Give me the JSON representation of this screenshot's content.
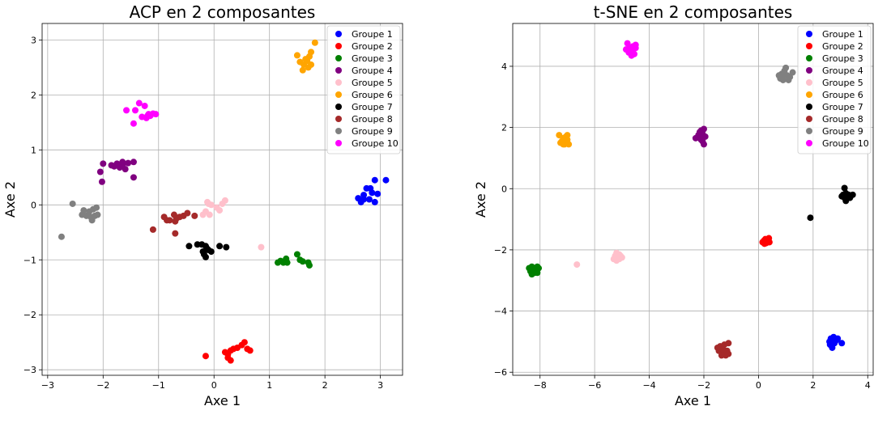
{
  "chart_data": [
    {
      "type": "scatter",
      "title": "ACP en 2 composantes",
      "xlabel": "Axe 1",
      "ylabel": "Axe 2",
      "xlim": [
        -3.1,
        3.4
      ],
      "ylim": [
        -3.1,
        3.3
      ],
      "xticks": [
        -3,
        -2,
        -1,
        0,
        1,
        2,
        3
      ],
      "yticks": [
        -3,
        -2,
        -1,
        0,
        1,
        2,
        3
      ],
      "grid": true,
      "legend_position": "top-right",
      "series": [
        {
          "name": "Groupe 1",
          "color": "#0000ff",
          "points": [
            [
              2.65,
              0.05
            ],
            [
              2.6,
              0.12
            ],
            [
              2.7,
              0.18
            ],
            [
              2.75,
              0.3
            ],
            [
              2.8,
              0.1
            ],
            [
              2.85,
              0.22
            ],
            [
              2.9,
              0.05
            ],
            [
              2.95,
              0.2
            ],
            [
              2.9,
              0.45
            ],
            [
              3.1,
              0.45
            ],
            [
              2.82,
              0.3
            ],
            [
              2.7,
              0.1
            ]
          ]
        },
        {
          "name": "Groupe 2",
          "color": "#ff0000",
          "points": [
            [
              0.2,
              -2.68
            ],
            [
              0.25,
              -2.72
            ],
            [
              0.3,
              -2.65
            ],
            [
              0.35,
              -2.62
            ],
            [
              0.42,
              -2.6
            ],
            [
              0.5,
              -2.55
            ],
            [
              0.55,
              -2.5
            ],
            [
              0.6,
              -2.62
            ],
            [
              0.65,
              -2.65
            ],
            [
              0.3,
              -2.83
            ],
            [
              0.25,
              -2.78
            ],
            [
              -0.15,
              -2.75
            ]
          ]
        },
        {
          "name": "Groupe 3",
          "color": "#008000",
          "points": [
            [
              1.15,
              -1.05
            ],
            [
              1.2,
              -1.02
            ],
            [
              1.25,
              -1.05
            ],
            [
              1.3,
              -0.98
            ],
            [
              1.32,
              -1.05
            ],
            [
              1.5,
              -0.9
            ],
            [
              1.55,
              -1.0
            ],
            [
              1.6,
              -1.03
            ],
            [
              1.7,
              -1.05
            ],
            [
              1.72,
              -1.1
            ],
            [
              1.28,
              -1.02
            ]
          ]
        },
        {
          "name": "Groupe 4",
          "color": "#800080",
          "points": [
            [
              -2.05,
              0.6
            ],
            [
              -2.0,
              0.75
            ],
            [
              -2.02,
              0.42
            ],
            [
              -1.85,
              0.72
            ],
            [
              -1.8,
              0.7
            ],
            [
              -1.75,
              0.75
            ],
            [
              -1.7,
              0.68
            ],
            [
              -1.65,
              0.72
            ],
            [
              -1.6,
              0.65
            ],
            [
              -1.55,
              0.76
            ],
            [
              -1.45,
              0.78
            ],
            [
              -1.45,
              0.5
            ],
            [
              -1.65,
              0.78
            ]
          ]
        },
        {
          "name": "Groupe 5",
          "color": "#ffc0cb",
          "points": [
            [
              -0.2,
              -0.18
            ],
            [
              -0.15,
              -0.12
            ],
            [
              -0.1,
              0.02
            ],
            [
              -0.05,
              0.0
            ],
            [
              -0.08,
              -0.18
            ],
            [
              0.05,
              -0.05
            ],
            [
              0.1,
              -0.1
            ],
            [
              0.15,
              0.02
            ],
            [
              0.2,
              0.08
            ],
            [
              -0.12,
              0.05
            ],
            [
              0.85,
              -0.77
            ]
          ]
        },
        {
          "name": "Groupe 6",
          "color": "#ffa500",
          "points": [
            [
              1.5,
              2.72
            ],
            [
              1.55,
              2.6
            ],
            [
              1.6,
              2.45
            ],
            [
              1.62,
              2.55
            ],
            [
              1.65,
              2.65
            ],
            [
              1.7,
              2.5
            ],
            [
              1.72,
              2.7
            ],
            [
              1.75,
              2.55
            ],
            [
              1.75,
              2.78
            ],
            [
              1.68,
              2.62
            ],
            [
              1.82,
              2.95
            ]
          ]
        },
        {
          "name": "Groupe 7",
          "color": "#000000",
          "points": [
            [
              -0.45,
              -0.75
            ],
            [
              -0.3,
              -0.72
            ],
            [
              -0.22,
              -0.72
            ],
            [
              -0.2,
              -0.85
            ],
            [
              -0.18,
              -0.9
            ],
            [
              -0.15,
              -0.75
            ],
            [
              -0.12,
              -0.8
            ],
            [
              -0.1,
              -0.82
            ],
            [
              -0.05,
              -0.85
            ],
            [
              -0.15,
              -0.95
            ],
            [
              0.1,
              -0.75
            ],
            [
              0.22,
              -0.77
            ]
          ]
        },
        {
          "name": "Groupe 8",
          "color": "#a52a2a",
          "points": [
            [
              -1.1,
              -0.45
            ],
            [
              -0.9,
              -0.22
            ],
            [
              -0.85,
              -0.28
            ],
            [
              -0.8,
              -0.28
            ],
            [
              -0.72,
              -0.18
            ],
            [
              -0.68,
              -0.25
            ],
            [
              -0.7,
              -0.3
            ],
            [
              -0.62,
              -0.22
            ],
            [
              -0.55,
              -0.2
            ],
            [
              -0.48,
              -0.15
            ],
            [
              -0.35,
              -0.2
            ],
            [
              -0.7,
              -0.52
            ]
          ]
        },
        {
          "name": "Groupe 9",
          "color": "#808080",
          "points": [
            [
              -2.75,
              -0.58
            ],
            [
              -2.55,
              0.02
            ],
            [
              -2.35,
              -0.1
            ],
            [
              -2.38,
              -0.18
            ],
            [
              -2.3,
              -0.2
            ],
            [
              -2.25,
              -0.12
            ],
            [
              -2.22,
              -0.22
            ],
            [
              -2.2,
              -0.28
            ],
            [
              -2.18,
              -0.08
            ],
            [
              -2.15,
              -0.2
            ],
            [
              -2.12,
              -0.05
            ],
            [
              -2.1,
              -0.18
            ]
          ]
        },
        {
          "name": "Groupe 10",
          "color": "#ff00ff",
          "points": [
            [
              -1.58,
              1.72
            ],
            [
              -1.45,
              1.48
            ],
            [
              -1.42,
              1.72
            ],
            [
              -1.35,
              1.85
            ],
            [
              -1.3,
              1.6
            ],
            [
              -1.25,
              1.8
            ],
            [
              -1.22,
              1.58
            ],
            [
              -1.18,
              1.65
            ],
            [
              -1.15,
              1.62
            ],
            [
              -1.1,
              1.66
            ],
            [
              -1.05,
              1.65
            ],
            [
              -1.2,
              1.62
            ]
          ]
        }
      ]
    },
    {
      "type": "scatter",
      "title": "t-SNE en 2 composantes",
      "xlabel": "Axe 1",
      "ylabel": "Axe 2",
      "xlim": [
        -9.0,
        4.2
      ],
      "ylim": [
        -6.1,
        5.4
      ],
      "xticks": [
        -8,
        -6,
        -4,
        -2,
        0,
        2,
        4
      ],
      "yticks": [
        -6,
        -4,
        -2,
        0,
        2,
        4
      ],
      "grid": true,
      "legend_position": "top-right",
      "series": [
        {
          "name": "Groupe 1",
          "color": "#0000ff",
          "points": [
            [
              2.6,
              -5.0
            ],
            [
              2.65,
              -4.9
            ],
            [
              2.7,
              -5.1
            ],
            [
              2.75,
              -4.85
            ],
            [
              2.8,
              -5.0
            ],
            [
              2.85,
              -4.95
            ],
            [
              2.7,
              -5.2
            ],
            [
              2.9,
              -4.9
            ],
            [
              2.62,
              -5.1
            ],
            [
              3.05,
              -5.05
            ],
            [
              2.78,
              -5.05
            ]
          ]
        },
        {
          "name": "Groupe 2",
          "color": "#ff0000",
          "points": [
            [
              0.15,
              -1.75
            ],
            [
              0.2,
              -1.7
            ],
            [
              0.25,
              -1.65
            ],
            [
              0.3,
              -1.72
            ],
            [
              0.35,
              -1.68
            ],
            [
              0.4,
              -1.75
            ],
            [
              0.22,
              -1.8
            ],
            [
              0.38,
              -1.62
            ],
            [
              0.28,
              -1.78
            ],
            [
              0.33,
              -1.7
            ]
          ]
        },
        {
          "name": "Groupe 3",
          "color": "#008000",
          "points": [
            [
              -8.4,
              -2.6
            ],
            [
              -8.35,
              -2.7
            ],
            [
              -8.3,
              -2.55
            ],
            [
              -8.25,
              -2.65
            ],
            [
              -8.2,
              -2.75
            ],
            [
              -8.15,
              -2.6
            ],
            [
              -8.1,
              -2.55
            ],
            [
              -8.3,
              -2.8
            ],
            [
              -8.05,
              -2.6
            ],
            [
              -8.1,
              -2.75
            ],
            [
              -8.25,
              -2.6
            ]
          ]
        },
        {
          "name": "Groupe 4",
          "color": "#800080",
          "points": [
            [
              -2.3,
              1.65
            ],
            [
              -2.2,
              1.75
            ],
            [
              -2.15,
              1.85
            ],
            [
              -2.1,
              1.6
            ],
            [
              -2.05,
              1.8
            ],
            [
              -2.0,
              1.95
            ],
            [
              -1.95,
              1.7
            ],
            [
              -2.0,
              1.45
            ],
            [
              -2.1,
              1.9
            ],
            [
              -2.05,
              1.55
            ],
            [
              -2.15,
              1.65
            ]
          ]
        },
        {
          "name": "Groupe 5",
          "color": "#ffc0cb",
          "points": [
            [
              -5.3,
              -2.3
            ],
            [
              -5.25,
              -2.2
            ],
            [
              -5.2,
              -2.1
            ],
            [
              -5.15,
              -2.25
            ],
            [
              -5.1,
              -2.3
            ],
            [
              -5.05,
              -2.2
            ],
            [
              -5.0,
              -2.25
            ],
            [
              -5.2,
              -2.35
            ],
            [
              -5.1,
              -2.15
            ],
            [
              -6.65,
              -2.48
            ]
          ]
        },
        {
          "name": "Groupe 6",
          "color": "#ffa500",
          "points": [
            [
              -7.3,
              1.75
            ],
            [
              -7.25,
              1.5
            ],
            [
              -7.2,
              1.55
            ],
            [
              -7.15,
              1.65
            ],
            [
              -7.1,
              1.45
            ],
            [
              -7.05,
              1.7
            ],
            [
              -7.0,
              1.6
            ],
            [
              -6.95,
              1.45
            ],
            [
              -7.05,
              1.5
            ],
            [
              -7.15,
              1.45
            ],
            [
              -7.0,
              1.75
            ]
          ]
        },
        {
          "name": "Groupe 7",
          "color": "#000000",
          "points": [
            [
              3.1,
              -0.2
            ],
            [
              3.15,
              -0.3
            ],
            [
              3.2,
              -0.15
            ],
            [
              3.25,
              -0.25
            ],
            [
              3.3,
              -0.2
            ],
            [
              3.35,
              -0.3
            ],
            [
              3.45,
              -0.2
            ],
            [
              3.15,
              0.02
            ],
            [
              3.2,
              -0.4
            ],
            [
              3.05,
              -0.25
            ],
            [
              1.9,
              -0.95
            ]
          ]
        },
        {
          "name": "Groupe 8",
          "color": "#a52a2a",
          "points": [
            [
              -1.5,
              -5.2
            ],
            [
              -1.45,
              -5.3
            ],
            [
              -1.4,
              -5.15
            ],
            [
              -1.35,
              -5.35
            ],
            [
              -1.3,
              -5.25
            ],
            [
              -1.25,
              -5.1
            ],
            [
              -1.2,
              -5.45
            ],
            [
              -1.15,
              -5.3
            ],
            [
              -1.1,
              -5.05
            ],
            [
              -1.1,
              -5.4
            ],
            [
              -1.35,
              -5.45
            ]
          ]
        },
        {
          "name": "Groupe 9",
          "color": "#808080",
          "points": [
            [
              0.75,
              3.7
            ],
            [
              0.8,
              3.6
            ],
            [
              0.85,
              3.75
            ],
            [
              0.9,
              3.55
            ],
            [
              0.95,
              3.85
            ],
            [
              1.0,
              3.95
            ],
            [
              1.05,
              3.7
            ],
            [
              1.1,
              3.55
            ],
            [
              1.15,
              3.65
            ],
            [
              1.25,
              3.8
            ],
            [
              0.9,
              3.7
            ]
          ]
        },
        {
          "name": "Groupe 10",
          "color": "#ff00ff",
          "points": [
            [
              -4.85,
              4.55
            ],
            [
              -4.8,
              4.75
            ],
            [
              -4.75,
              4.45
            ],
            [
              -4.7,
              4.6
            ],
            [
              -4.65,
              4.35
            ],
            [
              -4.6,
              4.5
            ],
            [
              -4.55,
              4.4
            ],
            [
              -4.5,
              4.6
            ],
            [
              -4.5,
              4.7
            ],
            [
              -4.7,
              4.5
            ],
            [
              -4.6,
              4.65
            ]
          ]
        }
      ]
    }
  ]
}
